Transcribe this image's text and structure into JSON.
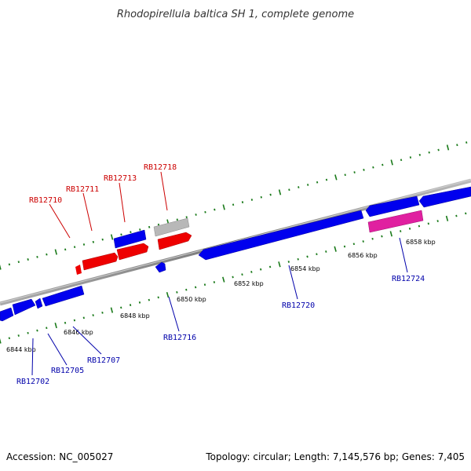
{
  "title": "Rhodopirellula baltica SH 1, complete genome",
  "footer": {
    "accession": "Accession: NC_005027",
    "summary": "Topology: circular; Length: 7,145,576 bp; Genes: 7,405"
  },
  "colors": {
    "forward_label": "#cc0000",
    "reverse_label": "#0000aa",
    "tick_mark": "#1a7a1a",
    "backbone": "#888888",
    "gene_blue": "#0000ee",
    "gene_red": "#ee0000",
    "gene_gray": "#b8b8b8",
    "gene_magenta": "#e020a0"
  },
  "scale_ticks": [
    {
      "label": "6844 kbp"
    },
    {
      "label": "6846 kbp"
    },
    {
      "label": "6848 kbp"
    },
    {
      "label": "6850 kbp"
    },
    {
      "label": "6852 kbp"
    },
    {
      "label": "6854 kbp"
    },
    {
      "label": "6856 kbp"
    },
    {
      "label": "6858 kbp"
    }
  ],
  "forward_genes": [
    {
      "locus": "RB12710"
    },
    {
      "locus": "RB12711"
    },
    {
      "locus": "RB12713"
    },
    {
      "locus": "RB12718"
    }
  ],
  "reverse_genes": [
    {
      "locus": "RB12702"
    },
    {
      "locus": "RB12705"
    },
    {
      "locus": "RB12707"
    },
    {
      "locus": "RB12716"
    },
    {
      "locus": "RB12720"
    },
    {
      "locus": "RB12724"
    }
  ]
}
